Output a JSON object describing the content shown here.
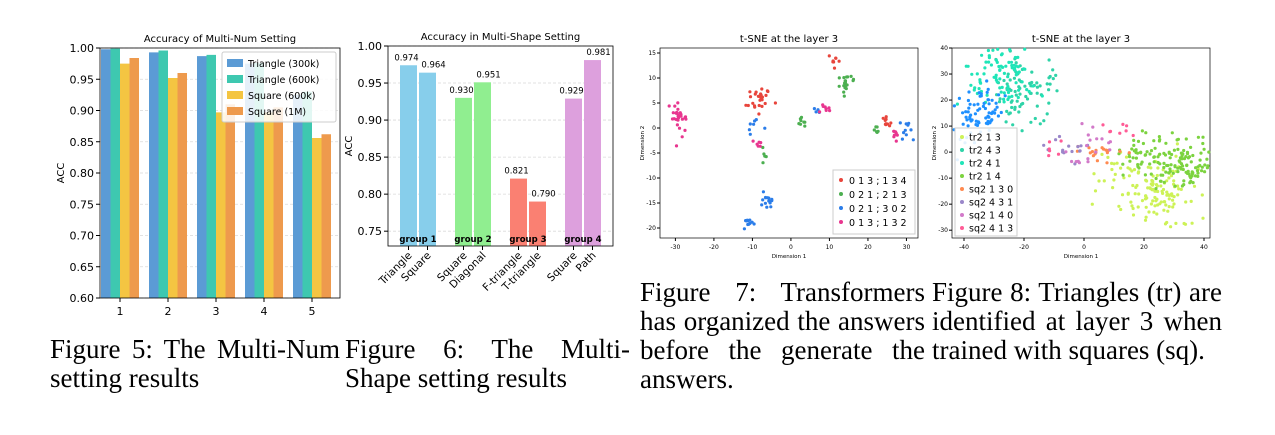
{
  "charts": [
    {
      "title": "Accuracy of Multi-Num Setting",
      "ylabel": "ACC",
      "categories": [
        "1",
        "2",
        "3",
        "4",
        "5"
      ],
      "yticks": [
        "0.60",
        "0.65",
        "0.70",
        "0.75",
        "0.80",
        "0.85",
        "0.90",
        "0.95",
        "1.00"
      ],
      "caption": "Figure 5: The Multi-Num setting results"
    },
    {
      "title": "Accuracy in Multi-Shape Setting",
      "ylabel": "ACC",
      "yticks": [
        "0.75",
        "0.80",
        "0.85",
        "0.90",
        "0.95",
        "1.00"
      ],
      "caption": "Figure 6: The Multi-Shape setting results"
    },
    {
      "title": "t-SNE at the layer 3",
      "xlabel": "Dimension 1",
      "ylabel": "Dimension 2",
      "xticks": [
        "-30",
        "-20",
        "-10",
        "0",
        "10",
        "20",
        "30"
      ],
      "yticks": [
        "15",
        "10",
        "5",
        "0",
        "-5",
        "-10",
        "-15",
        "-20"
      ],
      "caption": "Figure 7: Transformers has organized the answers before the generate the answers."
    },
    {
      "title": "t-SNE at the layer 3",
      "xlabel": "Dimension 1",
      "ylabel": "Dimension 2",
      "xticks": [
        "-40",
        "-20",
        "0",
        "20",
        "40"
      ],
      "yticks": [
        "40",
        "30",
        "20",
        "10",
        "0",
        "-10",
        "-20",
        "-30"
      ],
      "caption": "Figure 8: Triangles (tr) are identified at layer 3 when trained with squares (sq)."
    }
  ],
  "chart_data": [
    {
      "type": "bar",
      "title": "Accuracy of Multi-Num Setting",
      "ylabel": "ACC",
      "categories": [
        "1",
        "2",
        "3",
        "4",
        "5"
      ],
      "ylim": [
        0.6,
        1.0
      ],
      "legend": "top-right",
      "series": [
        {
          "name": "Triangle (300k)",
          "color": "#5b9bd5",
          "values": [
            0.998,
            0.993,
            0.987,
            0.975,
            0.925
          ]
        },
        {
          "name": "Triangle (600k)",
          "color": "#3ec8b0",
          "values": [
            0.999,
            0.996,
            0.989,
            0.976,
            0.93
          ]
        },
        {
          "name": "Square (600k)",
          "color": "#f4c542",
          "values": [
            0.975,
            0.952,
            0.897,
            0.897,
            0.856
          ]
        },
        {
          "name": "Square (1M)",
          "color": "#ee9a4d",
          "values": [
            0.984,
            0.96,
            0.91,
            0.905,
            0.862
          ]
        }
      ]
    },
    {
      "type": "bar",
      "title": "Accuracy in Multi-Shape Setting",
      "ylabel": "ACC",
      "ylim": [
        0.73,
        1.0
      ],
      "groups": [
        "group 1",
        "group 2",
        "group 3",
        "group 4"
      ],
      "bars": [
        {
          "label": "Triangle",
          "group": 0,
          "value": 0.974,
          "value_label": "0.974",
          "color": "#87ceeb"
        },
        {
          "label": "Square",
          "group": 0,
          "value": 0.964,
          "value_label": "0.964",
          "color": "#87ceeb"
        },
        {
          "label": "Square",
          "group": 1,
          "value": 0.93,
          "value_label": "0.930",
          "color": "#90ee90"
        },
        {
          "label": "Diagonal",
          "group": 1,
          "value": 0.951,
          "value_label": "0.951",
          "color": "#90ee90"
        },
        {
          "label": "F-triangle",
          "group": 2,
          "value": 0.821,
          "value_label": "0.821",
          "color": "#fa8072"
        },
        {
          "label": "T-triangle",
          "group": 2,
          "value": 0.79,
          "value_label": "0.790",
          "color": "#fa8072"
        },
        {
          "label": "Square",
          "group": 3,
          "value": 0.929,
          "value_label": "0.929",
          "color": "#dda0dd"
        },
        {
          "label": "Path",
          "group": 3,
          "value": 0.981,
          "value_label": "0.981",
          "color": "#dda0dd"
        }
      ]
    },
    {
      "type": "scatter",
      "title": "t-SNE at the layer 3",
      "xlabel": "Dimension 1",
      "ylabel": "Dimension 2",
      "xlim": [
        -34,
        33
      ],
      "ylim": [
        -22,
        16
      ],
      "legend": "bottom-right",
      "series": [
        {
          "name": "0 1 3 ; 1 3 4",
          "color": "#e8453c",
          "clusters": [
            [
              -8,
              6,
              1.4,
              1.6,
              26
            ],
            [
              11,
              13.5,
              0.8,
              0.6,
              8
            ],
            [
              25,
              1,
              1.1,
              0.6,
              10
            ]
          ]
        },
        {
          "name": "0 2 1 ; 2 1 3",
          "color": "#4caf50",
          "clusters": [
            [
              14,
              9,
              0.9,
              1.4,
              20
            ],
            [
              3,
              1,
              0.7,
              0.5,
              8
            ],
            [
              -7,
              -5,
              0.3,
              1.2,
              5
            ],
            [
              22,
              0,
              0.8,
              0.6,
              6
            ]
          ]
        },
        {
          "name": "0 2 1 ; 3 0 2",
          "color": "#2b7de9",
          "clusters": [
            [
              -6,
              -14,
              0.9,
              1.0,
              15
            ],
            [
              -11,
              -18.5,
              0.9,
              0.6,
              12
            ],
            [
              -9,
              1,
              0.8,
              1.2,
              7
            ],
            [
              30,
              -1,
              0.8,
              1.1,
              10
            ],
            [
              7,
              3.5,
              0.6,
              0.4,
              4
            ]
          ]
        },
        {
          "name": "0 1 3 ; 1 3 2",
          "color": "#e8368f",
          "clusters": [
            [
              -29,
              2,
              1.2,
              1.8,
              30
            ],
            [
              -9,
              -3,
              0.6,
              0.5,
              6
            ],
            [
              9,
              4,
              0.8,
              0.5,
              8
            ],
            [
              27,
              -2,
              0.6,
              1.0,
              8
            ]
          ]
        }
      ]
    },
    {
      "type": "scatter",
      "title": "t-SNE at the layer 3",
      "xlabel": "Dimension 1",
      "ylabel": "Dimension 2",
      "xlim": [
        -44,
        42
      ],
      "ylim": [
        -33,
        40
      ],
      "legend": "left",
      "series": [
        {
          "name": "tr2 1 3",
          "color": "#cdf257",
          "clusters": [
            [
              26,
              -15,
              5,
              7,
              110
            ],
            [
              13,
              -10,
              4,
              5,
              30
            ]
          ]
        },
        {
          "name": "tr2 4 3",
          "color": "#2fd3a8",
          "clusters": [
            [
              -20,
              24,
              5,
              6,
              80
            ]
          ]
        },
        {
          "name": "tr2 4 1",
          "color": "#1fe5b8",
          "clusters": [
            [
              -28,
              30,
              6,
              6,
              90
            ]
          ]
        },
        {
          "name": "tr2 1 4",
          "color": "#7cd33f",
          "clusters": [
            [
              33,
              -5,
              6,
              5,
              110
            ],
            [
              20,
              -1,
              5,
              4,
              40
            ]
          ]
        },
        {
          "name": "sq2 1 3 0",
          "color": "#ff8a50",
          "clusters": [
            [
              2,
              -1,
              5,
              2,
              18
            ]
          ]
        },
        {
          "name": "sq2 4 3 1",
          "color": "#9a87c9",
          "clusters": [
            [
              -5,
              2,
              4,
              3,
              15
            ]
          ]
        },
        {
          "name": "sq2 1 4 0",
          "color": "#d27ac9",
          "clusters": [
            [
              5,
              4,
              4,
              3,
              12
            ],
            [
              -3,
              -2,
              3,
              2,
              6
            ]
          ]
        },
        {
          "name": "sq2 4 1 3",
          "color": "#ff5c96",
          "clusters": [
            [
              10,
              9,
              3,
              2,
              8
            ],
            [
              -10,
              1,
              2,
              2,
              6
            ]
          ]
        },
        {
          "name": "",
          "color": "#1e90ff",
          "clusters": [
            [
              -36,
              14,
              5,
              5,
              80
            ]
          ]
        }
      ]
    }
  ]
}
